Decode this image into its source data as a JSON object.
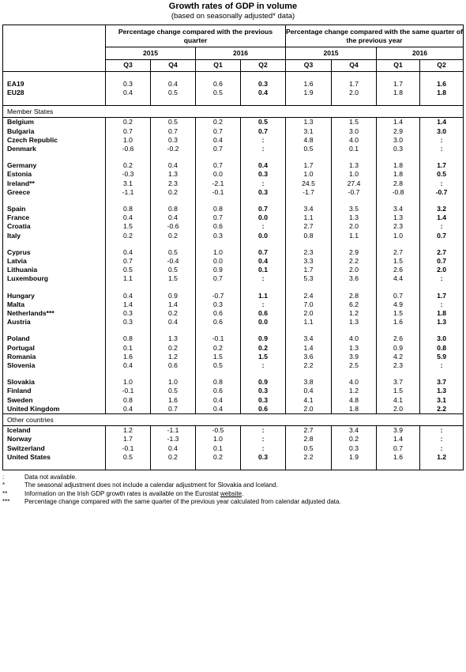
{
  "title": "Growth rates of GDP in volume",
  "subtitle": "(based on seasonally adjusted* data)",
  "headers": {
    "group_prev_quarter": "Percentage change compared with the previous quarter",
    "group_prev_year": "Percentage change compared with the same quarter of the previous year",
    "year_2015": "2015",
    "year_2016": "2016",
    "quarters": [
      "Q3",
      "Q4",
      "Q1",
      "Q2",
      "Q3",
      "Q4",
      "Q1",
      "Q2"
    ]
  },
  "sections": [
    {
      "label": "",
      "groups": [
        [
          {
            "name": "EA19",
            "v": [
              "0.3",
              "0.4",
              "0.6",
              "0.3",
              "1.6",
              "1.7",
              "1.7",
              "1.6"
            ]
          },
          {
            "name": "EU28",
            "v": [
              "0.4",
              "0.5",
              "0.5",
              "0.4",
              "1.9",
              "2.0",
              "1.8",
              "1.8"
            ]
          }
        ]
      ]
    },
    {
      "label": "Member States",
      "groups": [
        [
          {
            "name": "Belgium",
            "v": [
              "0.2",
              "0.5",
              "0.2",
              "0.5",
              "1.3",
              "1.5",
              "1.4",
              "1.4"
            ]
          },
          {
            "name": "Bulgaria",
            "v": [
              "0.7",
              "0.7",
              "0.7",
              "0.7",
              "3.1",
              "3.0",
              "2.9",
              "3.0"
            ]
          },
          {
            "name": "Czech Republic",
            "v": [
              "1.0",
              "0.3",
              "0.4",
              ":",
              "4.8",
              "4.0",
              "3.0",
              ":"
            ]
          },
          {
            "name": "Denmark",
            "v": [
              "-0.6",
              "-0.2",
              "0.7",
              ":",
              "0.5",
              "0.1",
              "0.3",
              ":"
            ]
          }
        ],
        [
          {
            "name": "Germany",
            "v": [
              "0.2",
              "0.4",
              "0.7",
              "0.4",
              "1.7",
              "1.3",
              "1.8",
              "1.7"
            ]
          },
          {
            "name": "Estonia",
            "v": [
              "-0.3",
              "1.3",
              "0.0",
              "0.3",
              "1.0",
              "1.0",
              "1.8",
              "0.5"
            ]
          },
          {
            "name": "Ireland**",
            "v": [
              "3.1",
              "2.3",
              "-2.1",
              ":",
              "24.5",
              "27.4",
              "2.8",
              ":"
            ]
          },
          {
            "name": "Greece",
            "v": [
              "-1.1",
              "0.2",
              "-0.1",
              "0.3",
              "-1.7",
              "-0.7",
              "-0.8",
              "-0.7"
            ]
          }
        ],
        [
          {
            "name": "Spain",
            "v": [
              "0.8",
              "0.8",
              "0.8",
              "0.7",
              "3.4",
              "3.5",
              "3.4",
              "3.2"
            ]
          },
          {
            "name": "France",
            "v": [
              "0.4",
              "0.4",
              "0.7",
              "0.0",
              "1.1",
              "1.3",
              "1.3",
              "1.4"
            ]
          },
          {
            "name": "Croatia",
            "v": [
              "1.5",
              "-0.6",
              "0.6",
              ":",
              "2.7",
              "2.0",
              "2.3",
              ":"
            ]
          },
          {
            "name": "Italy",
            "v": [
              "0.2",
              "0.2",
              "0.3",
              "0.0",
              "0.8",
              "1.1",
              "1.0",
              "0.7"
            ]
          }
        ],
        [
          {
            "name": "Cyprus",
            "v": [
              "0.4",
              "0.5",
              "1.0",
              "0.7",
              "2.3",
              "2.9",
              "2.7",
              "2.7"
            ]
          },
          {
            "name": "Latvia",
            "v": [
              "0.7",
              "-0.4",
              "0.0",
              "0.4",
              "3.3",
              "2.2",
              "1.5",
              "0.7"
            ]
          },
          {
            "name": "Lithuania",
            "v": [
              "0.5",
              "0.5",
              "0.9",
              "0.1",
              "1.7",
              "2.0",
              "2.6",
              "2.0"
            ]
          },
          {
            "name": "Luxembourg",
            "v": [
              "1.1",
              "1.5",
              "0.7",
              ":",
              "5.3",
              "3.6",
              "4.4",
              ":"
            ]
          }
        ],
        [
          {
            "name": "Hungary",
            "v": [
              "0.4",
              "0.9",
              "-0.7",
              "1.1",
              "2.4",
              "2.8",
              "0.7",
              "1.7"
            ]
          },
          {
            "name": "Malta",
            "v": [
              "1.4",
              "1.4",
              "0.3",
              ":",
              "7.0",
              "6.2",
              "4.9",
              ":"
            ]
          },
          {
            "name": "Netherlands***",
            "v": [
              "0.3",
              "0.2",
              "0.6",
              "0.6",
              "2.0",
              "1.2",
              "1.5",
              "1.8"
            ]
          },
          {
            "name": "Austria",
            "v": [
              "0.3",
              "0.4",
              "0.6",
              "0.0",
              "1.1",
              "1.3",
              "1.6",
              "1.3"
            ]
          }
        ],
        [
          {
            "name": "Poland",
            "v": [
              "0.8",
              "1.3",
              "-0.1",
              "0.9",
              "3.4",
              "4.0",
              "2.6",
              "3.0"
            ]
          },
          {
            "name": "Portugal",
            "v": [
              "0.1",
              "0.2",
              "0.2",
              "0.2",
              "1.4",
              "1.3",
              "0.9",
              "0.8"
            ]
          },
          {
            "name": "Romania",
            "v": [
              "1.6",
              "1.2",
              "1.5",
              "1.5",
              "3.6",
              "3.9",
              "4.2",
              "5.9"
            ]
          },
          {
            "name": "Slovenia",
            "v": [
              "0.4",
              "0.6",
              "0.5",
              ":",
              "2.2",
              "2.5",
              "2.3",
              ":"
            ]
          }
        ],
        [
          {
            "name": "Slovakia",
            "v": [
              "1.0",
              "1.0",
              "0.8",
              "0.9",
              "3.8",
              "4.0",
              "3.7",
              "3.7"
            ]
          },
          {
            "name": "Finland",
            "v": [
              "-0.1",
              "0.5",
              "0.6",
              "0.3",
              "0.4",
              "1.2",
              "1.5",
              "1.3"
            ]
          },
          {
            "name": "Sweden",
            "v": [
              "0.8",
              "1.6",
              "0.4",
              "0.3",
              "4.1",
              "4.8",
              "4.1",
              "3.1"
            ]
          },
          {
            "name": "United Kingdom",
            "v": [
              "0.4",
              "0.7",
              "0.4",
              "0.6",
              "2.0",
              "1.8",
              "2.0",
              "2.2"
            ]
          }
        ]
      ]
    },
    {
      "label": "Other countries",
      "groups": [
        [
          {
            "name": "Iceland",
            "v": [
              "1.2",
              "-1.1",
              "-0.5",
              ":",
              "2.7",
              "3.4",
              "3.9",
              ":"
            ]
          },
          {
            "name": "Norway",
            "v": [
              "1.7",
              "-1.3",
              "1.0",
              ":",
              "2.8",
              "0.2",
              "1.4",
              ":"
            ]
          },
          {
            "name": "Switzerland",
            "v": [
              "-0.1",
              "0.4",
              "0.1",
              ":",
              "0.5",
              "0.3",
              "0.7",
              ":"
            ]
          },
          {
            "name": "United States",
            "v": [
              "0.5",
              "0.2",
              "0.2",
              "0.3",
              "2.2",
              "1.9",
              "1.6",
              "1.2"
            ]
          }
        ]
      ]
    }
  ],
  "notes": [
    {
      "mark": ":",
      "text": "Data not available."
    },
    {
      "mark": "*",
      "text": "The seasonal adjustment does not include a calendar adjustment for Slovakia and Iceland."
    },
    {
      "mark": "**",
      "text": "Information on the Irish GDP growth rates is available on the Eurostat ",
      "link": "website",
      "after": "."
    },
    {
      "mark": "***",
      "text": "Percentage change compared with the same quarter of the previous year calculated from calendar adjusted data."
    }
  ]
}
